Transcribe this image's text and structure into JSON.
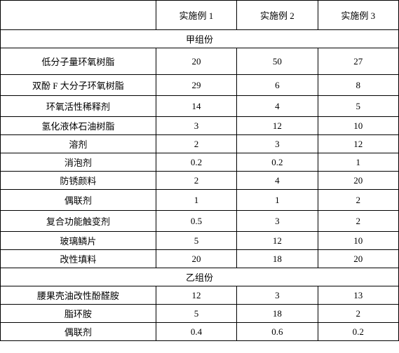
{
  "table": {
    "header": {
      "col0": "",
      "col1": "实施例 1",
      "col2": "实施例 2",
      "col3": "实施例 3"
    },
    "section1": "甲组份",
    "rows1": [
      {
        "label": "低分子量环氧树脂",
        "v1": "20",
        "v2": "50",
        "v3": "27",
        "cls": "tall-row"
      },
      {
        "label": "双酚 F 大分子环氧树脂",
        "v1": "29",
        "v2": "6",
        "v3": "8",
        "cls": "mid-row"
      },
      {
        "label": "环氧活性稀释剂",
        "v1": "14",
        "v2": "4",
        "v3": "5",
        "cls": "mid-row"
      },
      {
        "label": "氢化液体石油树脂",
        "v1": "3",
        "v2": "12",
        "v3": "10",
        "cls": "med-row"
      },
      {
        "label": "溶剂",
        "v1": "2",
        "v2": "3",
        "v3": "12",
        "cls": "short-row"
      },
      {
        "label": "消泡剂",
        "v1": "0.2",
        "v2": "0.2",
        "v3": "1",
        "cls": "short-row"
      },
      {
        "label": "防锈颜料",
        "v1": "2",
        "v2": "4",
        "v3": "20",
        "cls": "med-row"
      },
      {
        "label": "偶联剂",
        "v1": "1",
        "v2": "1",
        "v3": "2",
        "cls": "mid-row"
      },
      {
        "label": "复合功能触变剂",
        "v1": "0.5",
        "v2": "3",
        "v3": "2",
        "cls": "mid-row"
      },
      {
        "label": "玻璃鳞片",
        "v1": "5",
        "v2": "12",
        "v3": "10",
        "cls": "med-row"
      },
      {
        "label": "改性填料",
        "v1": "20",
        "v2": "18",
        "v3": "20",
        "cls": "short-row"
      }
    ],
    "section2": "乙组份",
    "rows2": [
      {
        "label": "腰果壳油改性酚醛胺",
        "v1": "12",
        "v2": "3",
        "v3": "13",
        "cls": "med-row"
      },
      {
        "label": "脂环胺",
        "v1": "5",
        "v2": "18",
        "v3": "2",
        "cls": "short-row"
      },
      {
        "label": "偶联剂",
        "v1": "0.4",
        "v2": "0.6",
        "v3": "0.2",
        "cls": "short-row"
      }
    ],
    "colors": {
      "border": "#000000",
      "background": "#ffffff",
      "text": "#000000"
    },
    "font_size": 13
  }
}
